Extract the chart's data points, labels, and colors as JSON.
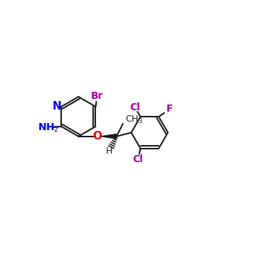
{
  "bg_color": "#ffffff",
  "bond_color": "#1a1a1a",
  "N_color": "#0000ee",
  "O_color": "#ee0000",
  "Br_color": "#aa00aa",
  "Cl_color": "#aa00aa",
  "F_color": "#aa00aa",
  "NH2_color": "#0000ee",
  "lw": 1.5,
  "figsize": [
    3.6,
    3.6
  ],
  "dpi": 100,
  "xlim": [
    0,
    10
  ],
  "ylim": [
    0,
    10
  ]
}
